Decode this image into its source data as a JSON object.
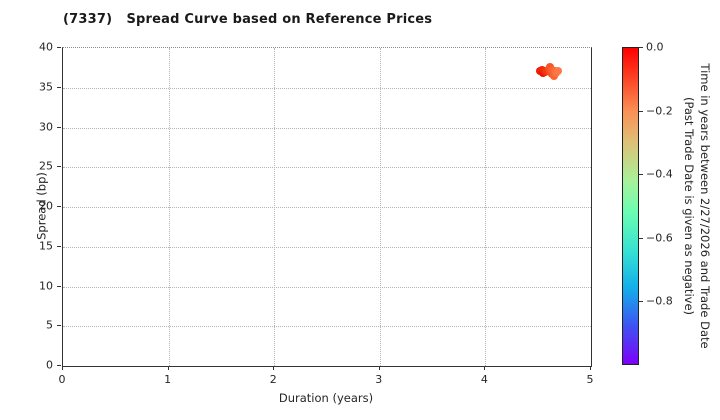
{
  "title": "(7337)   Spread Curve based on Reference Prices",
  "chart_data": {
    "type": "scatter",
    "title": "(7337)   Spread Curve based on Reference Prices",
    "xlabel": "Duration (years)",
    "ylabel": "Spread (bp)",
    "xlim": [
      0,
      5
    ],
    "ylim": [
      0,
      40
    ],
    "xticks": [
      "0",
      "1",
      "2",
      "3",
      "4",
      "5"
    ],
    "xtick_values": [
      0,
      1,
      2,
      3,
      4,
      5
    ],
    "yticks": [
      "0",
      "5",
      "10",
      "15",
      "20",
      "25",
      "30",
      "35",
      "40"
    ],
    "ytick_values": [
      0,
      5,
      10,
      15,
      20,
      25,
      30,
      35,
      40
    ],
    "grid": "dotted",
    "points": [
      {
        "x": 4.52,
        "y": 37.05,
        "t": -0.01,
        "color": "#ed1c07"
      },
      {
        "x": 4.535,
        "y": 37.25,
        "t": -0.01,
        "color": "#f02508"
      },
      {
        "x": 4.545,
        "y": 36.85,
        "t": 0.0,
        "color": "#e81306"
      },
      {
        "x": 4.555,
        "y": 37.1,
        "t": -0.02,
        "color": "#f12b0c"
      },
      {
        "x": 4.565,
        "y": 36.95,
        "t": -0.01,
        "color": "#ee1e05"
      },
      {
        "x": 4.575,
        "y": 37.15,
        "t": -0.03,
        "color": "#f4360f"
      },
      {
        "x": 4.6,
        "y": 37.35,
        "t": -0.05,
        "color": "#f74c1f"
      },
      {
        "x": 4.615,
        "y": 37.6,
        "t": -0.06,
        "color": "#f85426"
      },
      {
        "x": 4.615,
        "y": 37.0,
        "t": -0.05,
        "color": "#f84c20"
      },
      {
        "x": 4.63,
        "y": 36.7,
        "t": -0.07,
        "color": "#f95128"
      },
      {
        "x": 4.635,
        "y": 37.25,
        "t": -0.08,
        "color": "#fa5e30"
      },
      {
        "x": 4.65,
        "y": 36.45,
        "t": -0.09,
        "color": "#fa6334"
      },
      {
        "x": 4.655,
        "y": 37.05,
        "t": -0.1,
        "color": "#fb6a3a"
      },
      {
        "x": 4.67,
        "y": 36.85,
        "t": -0.11,
        "color": "#fb713f"
      },
      {
        "x": 4.685,
        "y": 37.1,
        "t": -0.12,
        "color": "#fc7846"
      }
    ],
    "colorbar": {
      "label_line1": "Time in years between 2/27/2026 and Trade Date",
      "label_line2": "(Past Trade Date is given as negative)",
      "ticks": [
        "0.0",
        "−0.2",
        "−0.4",
        "−0.6",
        "−0.8"
      ],
      "tick_values": [
        0,
        -0.2,
        -0.4,
        -0.6,
        -0.8
      ],
      "range": [
        0,
        -1
      ],
      "colormap": "rainbow",
      "gradient_stops": [
        {
          "pos": 0,
          "color": "#ff0000"
        },
        {
          "pos": 10,
          "color": "#fb4627"
        },
        {
          "pos": 20,
          "color": "#fa9055"
        },
        {
          "pos": 30,
          "color": "#ddc177"
        },
        {
          "pos": 42,
          "color": "#a8f199"
        },
        {
          "pos": 52,
          "color": "#6bfdb2"
        },
        {
          "pos": 64,
          "color": "#37e2d1"
        },
        {
          "pos": 76,
          "color": "#13aeea"
        },
        {
          "pos": 88,
          "color": "#3f52f2"
        },
        {
          "pos": 100,
          "color": "#7d00fa"
        }
      ]
    }
  }
}
